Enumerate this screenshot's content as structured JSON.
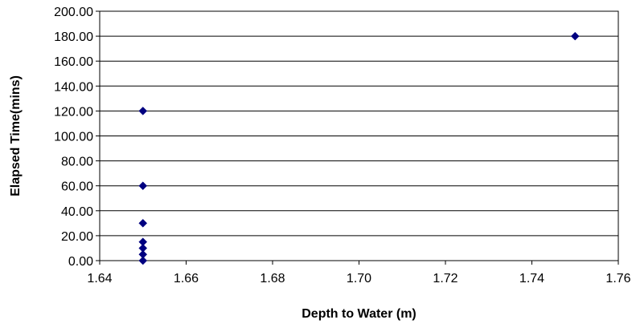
{
  "chart_data": {
    "type": "scatter",
    "title": "",
    "xlabel": "Depth to Water (m)",
    "ylabel": "Elapsed Time(mins)",
    "xlim": [
      1.64,
      1.76
    ],
    "ylim": [
      0,
      200
    ],
    "x_ticks": [
      "1.64",
      "1.66",
      "1.68",
      "1.70",
      "1.72",
      "1.74",
      "1.76"
    ],
    "y_ticks": [
      "0.00",
      "20.00",
      "40.00",
      "60.00",
      "80.00",
      "100.00",
      "120.00",
      "140.00",
      "160.00",
      "180.00",
      "200.00"
    ],
    "grid": "horizontal",
    "legend": "none",
    "marker": "diamond",
    "marker_color": "#000080",
    "series": [
      {
        "points": [
          {
            "x": 1.65,
            "y": 0
          },
          {
            "x": 1.65,
            "y": 5
          },
          {
            "x": 1.65,
            "y": 10
          },
          {
            "x": 1.65,
            "y": 15
          },
          {
            "x": 1.65,
            "y": 30
          },
          {
            "x": 1.65,
            "y": 60
          },
          {
            "x": 1.65,
            "y": 120
          },
          {
            "x": 1.75,
            "y": 180
          }
        ]
      }
    ]
  }
}
